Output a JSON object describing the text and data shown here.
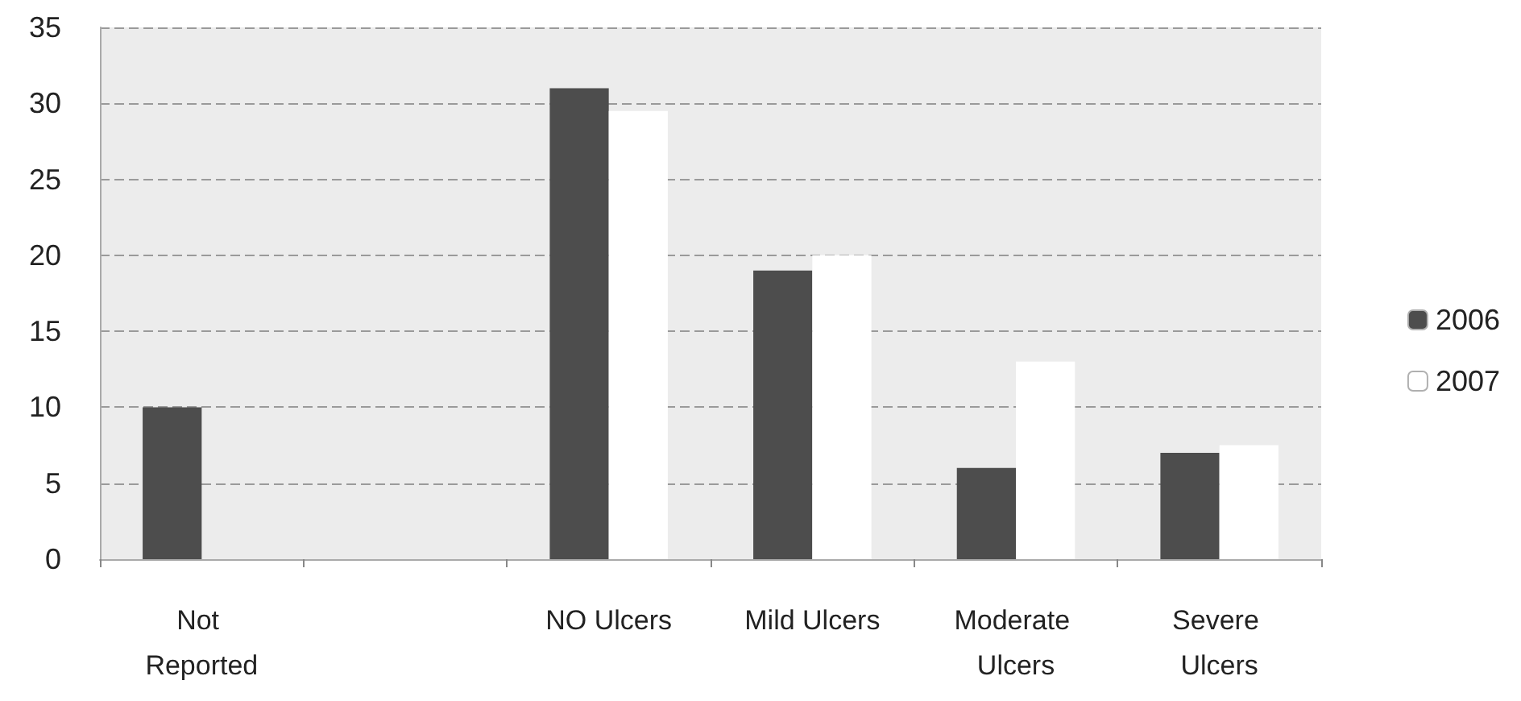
{
  "chart_data": {
    "type": "bar",
    "categories": [
      "Not Reported",
      null,
      "NO Ulcers",
      "Mild Ulcers",
      "Moderate Ulcers",
      "Severe Ulcers"
    ],
    "series": [
      {
        "name": "2006",
        "color": "#4d4d4d",
        "values": [
          10,
          null,
          31,
          19,
          6,
          7
        ]
      },
      {
        "name": "2007",
        "color": "#ffffff",
        "values": [
          0,
          null,
          29.5,
          20,
          13,
          7.5
        ]
      }
    ],
    "ylim": [
      0,
      35
    ],
    "yticks": [
      0,
      5,
      10,
      15,
      20,
      25,
      30,
      35
    ],
    "grid": "y",
    "legend": "right"
  }
}
